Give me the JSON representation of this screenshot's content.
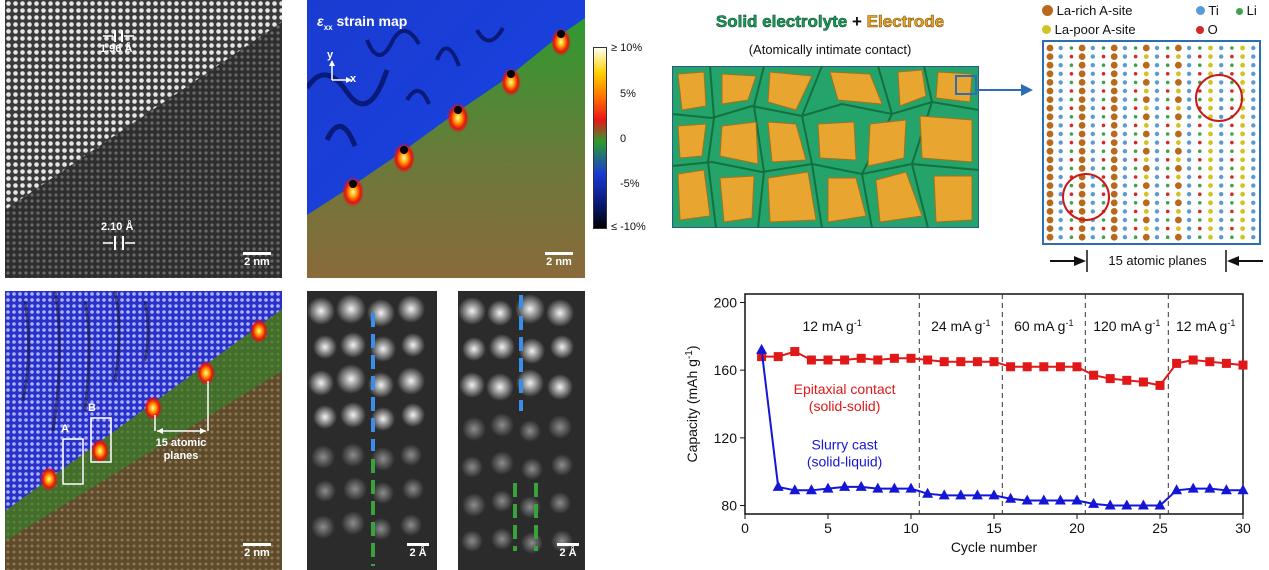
{
  "tem_lattice": {
    "top_spacing": "1.96 Å",
    "bottom_spacing": "2.10 Å",
    "scale_bar": "2 nm"
  },
  "strain_map": {
    "title_symbol": "ε",
    "title_sub": "xx",
    "title_text": "strain map",
    "axis_y": "y",
    "axis_x": "x",
    "scale_bar": "2 nm",
    "colorbar_ticks": [
      "≥ 10%",
      "5%",
      "0",
      "-5%",
      "≤ -10%"
    ]
  },
  "overlay": {
    "box_a": "A",
    "box_b": "B",
    "annotation_line1": "15 atomic",
    "annotation_line2": "planes",
    "scale_bar": "2 nm"
  },
  "zoom_a": {
    "scale_bar": "2 Å"
  },
  "zoom_b": {
    "scale_bar": "2 Å"
  },
  "schematic": {
    "title_part1": "Solid electrolyte",
    "title_plus": "+",
    "title_part2": "Electrode",
    "subtitle": "(Atomically intimate contact)"
  },
  "atom_model": {
    "legend": [
      "La-rich A-site",
      "Ti",
      "Li",
      "La-poor A-site",
      "O"
    ],
    "bottom_label": "15 atomic planes",
    "colors": {
      "la_rich": "#b8691c",
      "ti": "#5b9bd5",
      "li": "#3fa34d",
      "la_poor": "#d4c21e",
      "o": "#d62728"
    }
  },
  "chart_data": {
    "type": "line",
    "xlabel": "Cycle number",
    "ylabel_main": "Capacity (mAh g",
    "ylabel_sup": "-1",
    "ylabel_end": ")",
    "xlim": [
      0,
      30
    ],
    "ylim": [
      75,
      205
    ],
    "xticks": [
      0,
      5,
      10,
      15,
      20,
      25,
      30
    ],
    "yticks": [
      80,
      120,
      160,
      200
    ],
    "region_labels": [
      {
        "text": "12 mA g",
        "sup": "-1",
        "from": 0,
        "to": 10.5
      },
      {
        "text": "24 mA g",
        "sup": "-1",
        "from": 10.5,
        "to": 15.5
      },
      {
        "text": "60 mA g",
        "sup": "-1",
        "from": 15.5,
        "to": 20.5
      },
      {
        "text": "120 mA g",
        "sup": "-1",
        "from": 20.5,
        "to": 25.5
      },
      {
        "text": "12 mA g",
        "sup": "-1",
        "from": 25.5,
        "to": 30
      }
    ],
    "dividers": [
      10.5,
      15.5,
      20.5,
      25.5
    ],
    "series": [
      {
        "name": "Epitaxial contact",
        "name_line2": "(solid-solid)",
        "color": "#e01818",
        "marker": "square",
        "x": [
          1,
          2,
          3,
          4,
          5,
          6,
          7,
          8,
          9,
          10,
          11,
          12,
          13,
          14,
          15,
          16,
          17,
          18,
          19,
          20,
          21,
          22,
          23,
          24,
          25,
          26,
          27,
          28,
          29,
          30
        ],
        "values": [
          168,
          168,
          171,
          166,
          166,
          166,
          167,
          166,
          167,
          167,
          166,
          165,
          165,
          165,
          165,
          162,
          162,
          162,
          162,
          162,
          157,
          155,
          154,
          153,
          151,
          164,
          166,
          165,
          164,
          163
        ]
      },
      {
        "name": "Slurry cast",
        "name_line2": "(solid-liquid)",
        "color": "#1515d8",
        "marker": "triangle",
        "x": [
          1,
          2,
          3,
          4,
          5,
          6,
          7,
          8,
          9,
          10,
          11,
          12,
          13,
          14,
          15,
          16,
          17,
          18,
          19,
          20,
          21,
          22,
          23,
          24,
          25,
          26,
          27,
          28,
          29,
          30
        ],
        "values": [
          172,
          91,
          89,
          89,
          90,
          91,
          91,
          90,
          90,
          90,
          87,
          86,
          86,
          86,
          86,
          84,
          83,
          83,
          83,
          83,
          81,
          80,
          80,
          80,
          80,
          89,
          90,
          90,
          89,
          89
        ]
      }
    ]
  }
}
